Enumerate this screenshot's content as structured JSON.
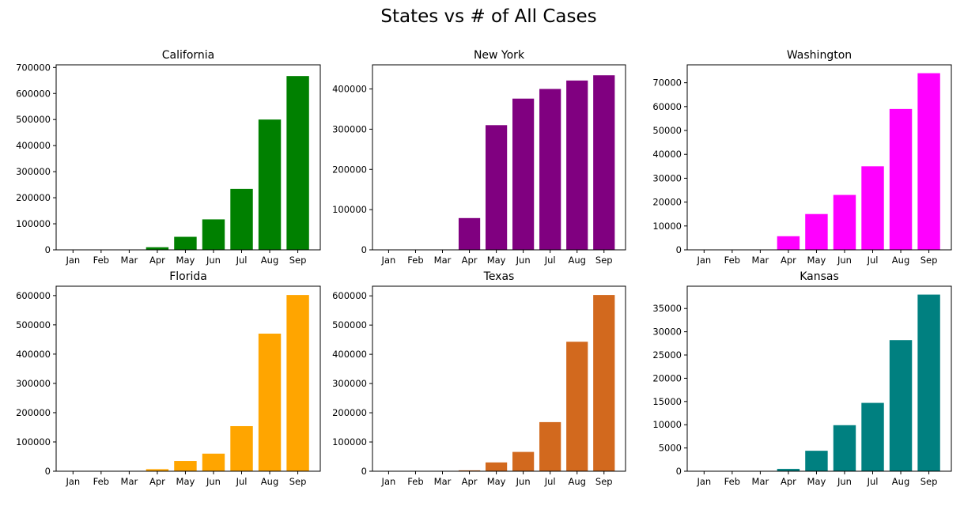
{
  "title": "States vs # of All Cases",
  "chart_data": [
    {
      "type": "bar",
      "title": "California",
      "color": "#008000",
      "categories": [
        "Jan",
        "Feb",
        "Mar",
        "Apr",
        "May",
        "Jun",
        "Jul",
        "Aug",
        "Sep"
      ],
      "values": [
        0,
        0,
        0,
        10000,
        50000,
        117000,
        234000,
        500000,
        667000
      ],
      "ylim": [
        0,
        710000
      ],
      "yticks": [
        0,
        100000,
        200000,
        300000,
        400000,
        500000,
        600000,
        700000
      ]
    },
    {
      "type": "bar",
      "title": "New York",
      "color": "#800080",
      "categories": [
        "Jan",
        "Feb",
        "Mar",
        "Apr",
        "May",
        "Jun",
        "Jul",
        "Aug",
        "Sep"
      ],
      "values": [
        0,
        0,
        0,
        79000,
        310000,
        376000,
        400000,
        421000,
        434000
      ],
      "ylim": [
        0,
        460000
      ],
      "yticks": [
        0,
        100000,
        200000,
        300000,
        400000
      ]
    },
    {
      "type": "bar",
      "title": "Washington",
      "color": "#ff00ff",
      "categories": [
        "Jan",
        "Feb",
        "Mar",
        "Apr",
        "May",
        "Jun",
        "Jul",
        "Aug",
        "Sep"
      ],
      "values": [
        0,
        0,
        0,
        5700,
        15000,
        23000,
        35000,
        59000,
        74000
      ],
      "ylim": [
        0,
        77500
      ],
      "yticks": [
        0,
        10000,
        20000,
        30000,
        40000,
        50000,
        60000,
        70000
      ]
    },
    {
      "type": "bar",
      "title": "Florida",
      "color": "#ffa500",
      "categories": [
        "Jan",
        "Feb",
        "Mar",
        "Apr",
        "May",
        "Jun",
        "Jul",
        "Aug",
        "Sep"
      ],
      "values": [
        0,
        0,
        0,
        7000,
        35000,
        60000,
        154000,
        470000,
        602000
      ],
      "ylim": [
        0,
        632000
      ],
      "yticks": [
        0,
        100000,
        200000,
        300000,
        400000,
        500000,
        600000
      ]
    },
    {
      "type": "bar",
      "title": "Texas",
      "color": "#d2691e",
      "categories": [
        "Jan",
        "Feb",
        "Mar",
        "Apr",
        "May",
        "Jun",
        "Jul",
        "Aug",
        "Sep"
      ],
      "values": [
        0,
        0,
        0,
        3000,
        30000,
        66000,
        168000,
        443000,
        603000
      ],
      "ylim": [
        0,
        633000
      ],
      "yticks": [
        0,
        100000,
        200000,
        300000,
        400000,
        500000,
        600000
      ]
    },
    {
      "type": "bar",
      "title": "Kansas",
      "color": "#008080",
      "categories": [
        "Jan",
        "Feb",
        "Mar",
        "Apr",
        "May",
        "Jun",
        "Jul",
        "Aug",
        "Sep"
      ],
      "values": [
        0,
        0,
        0,
        500,
        4400,
        9900,
        14700,
        28200,
        38000
      ],
      "ylim": [
        0,
        39800
      ],
      "yticks": [
        0,
        5000,
        10000,
        15000,
        20000,
        25000,
        30000,
        35000
      ]
    }
  ]
}
